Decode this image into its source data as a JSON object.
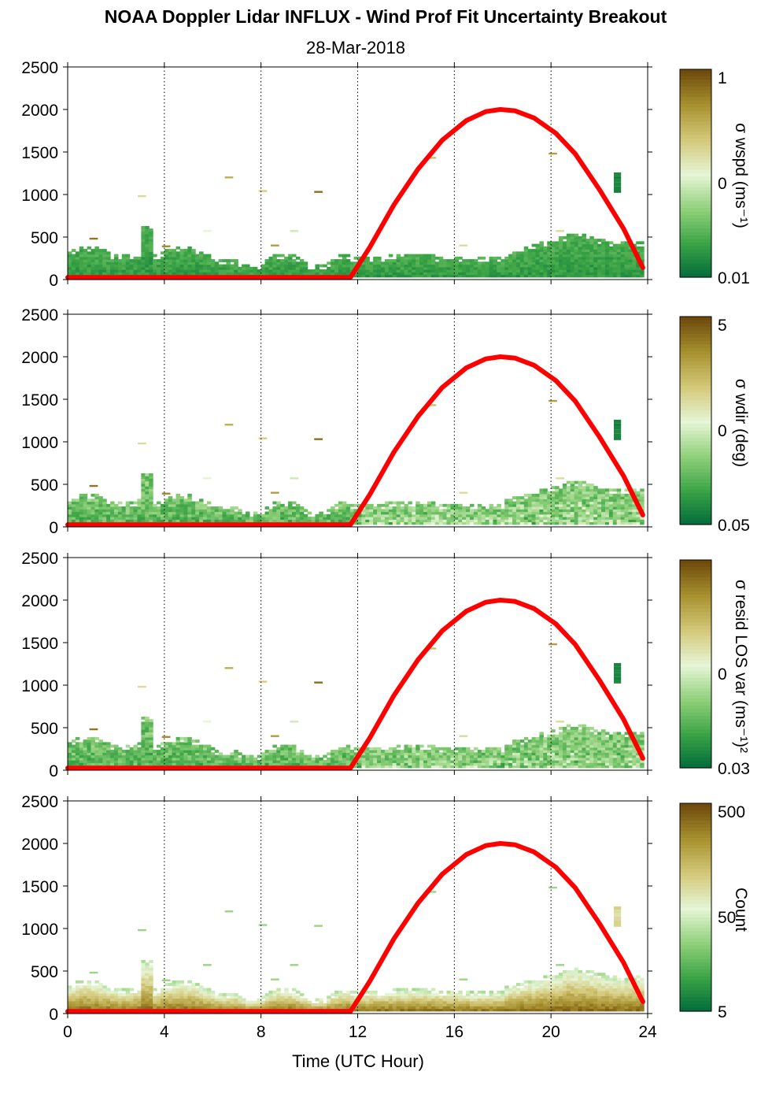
{
  "chart_data": {
    "type": "heatmap",
    "title": "NOAA Doppler Lidar INFLUX - Wind Prof Fit Uncertainty Breakout",
    "subtitle": "28-Mar-2018",
    "xlabel": "Time (UTC Hour)",
    "xlim": [
      0,
      24
    ],
    "x_ticks": [
      "0",
      "4",
      "8",
      "12",
      "16",
      "20",
      "24"
    ],
    "ylim": [
      0,
      2500
    ],
    "y_ticks": [
      "0",
      "500",
      "1000",
      "1500",
      "2000",
      "2500"
    ],
    "grid": "dotted vertical lines every 4 hours",
    "colormap": [
      "#00693a",
      "#3aa345",
      "#8fd07a",
      "#e6f5d6",
      "#d4c97a",
      "#a89230",
      "#6e4a0c"
    ],
    "sun_curve": {
      "color": "#ff0000",
      "points": [
        [
          0,
          25
        ],
        [
          11.7,
          25
        ],
        [
          12.5,
          380
        ],
        [
          13.5,
          880
        ],
        [
          14.5,
          1300
        ],
        [
          15.5,
          1640
        ],
        [
          16.5,
          1870
        ],
        [
          17.3,
          1975
        ],
        [
          17.9,
          2000
        ],
        [
          18.5,
          1985
        ],
        [
          19.3,
          1900
        ],
        [
          20.2,
          1720
        ],
        [
          21.0,
          1480
        ],
        [
          22.0,
          1060
        ],
        [
          23.0,
          600
        ],
        [
          23.8,
          140
        ]
      ]
    },
    "panels": [
      {
        "colorbar_label": "σ wspd (ms⁻¹)",
        "colorbar_ticks": [
          "1",
          "0",
          "0.01"
        ],
        "low_level": 0.08,
        "noise": 0.1,
        "daytime_boost": 0.0
      },
      {
        "colorbar_label": "σ wdir (deg)",
        "colorbar_ticks": [
          "5",
          "0",
          "0.05"
        ],
        "low_level": 0.12,
        "noise": 0.2,
        "daytime_boost": 0.3
      },
      {
        "colorbar_label": "σ resid LOS var (ms⁻¹)²",
        "colorbar_ticks": [
          "0",
          "0.03"
        ],
        "low_level": 0.12,
        "noise": 0.2,
        "daytime_boost": 0.25
      },
      {
        "colorbar_label": "Count",
        "colorbar_ticks": [
          "500",
          "50",
          "5"
        ],
        "low_level": 0.95,
        "noise": 0.1,
        "daytime_boost": 0.0
      }
    ]
  }
}
